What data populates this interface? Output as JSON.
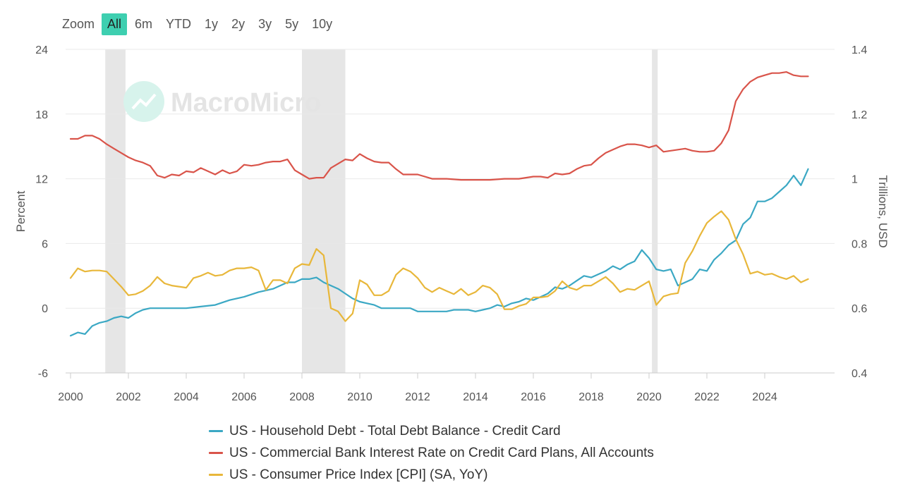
{
  "toolbar": {
    "zoom_label": "Zoom",
    "buttons": [
      "All",
      "6m",
      "YTD",
      "1y",
      "2y",
      "3y",
      "5y",
      "10y"
    ],
    "active": "All"
  },
  "watermark": "MacroMicro",
  "colors": {
    "accent": "#3ecfb0",
    "debt": "#3ba8c4",
    "rate": "#d9544a",
    "cpi": "#e8b73a",
    "recession": "#e6e6e6"
  },
  "chart_data": {
    "type": "line",
    "title": "",
    "ylabel_left": "Percent",
    "ylabel_right": "Trillions, USD",
    "ylim_left": [
      -6,
      24
    ],
    "ylim_right": [
      0.4,
      1.4
    ],
    "yticks_left": [
      "24",
      "18",
      "12",
      "6",
      "0",
      "-6"
    ],
    "yticks_right": [
      "1.4",
      "1.2",
      "1",
      "0.8",
      "0.6",
      "0.4"
    ],
    "xlim": [
      2000,
      2026.7
    ],
    "xticks": [
      "2000",
      "2002",
      "2004",
      "2006",
      "2008",
      "2010",
      "2012",
      "2014",
      "2016",
      "2018",
      "2020",
      "2022",
      "2024"
    ],
    "recessions": [
      [
        2001.2,
        2001.9
      ],
      [
        2008.0,
        2009.5
      ],
      [
        2020.1,
        2020.3
      ]
    ],
    "series": [
      {
        "name": "US - Household Debt - Total Debt Balance - Credit Card",
        "axis": "right",
        "color_key": "debt",
        "x": [
          2000.0,
          2000.25,
          2000.5,
          2000.75,
          2001.0,
          2001.25,
          2001.5,
          2001.75,
          2002.0,
          2002.25,
          2002.5,
          2002.75,
          2003.0,
          2003.5,
          2004.0,
          2004.5,
          2005.0,
          2005.5,
          2006.0,
          2006.5,
          2007.0,
          2007.25,
          2007.5,
          2007.75,
          2008.0,
          2008.25,
          2008.5,
          2008.75,
          2009.0,
          2009.25,
          2009.5,
          2009.75,
          2010.0,
          2010.25,
          2010.5,
          2010.75,
          2011.0,
          2011.25,
          2011.5,
          2011.75,
          2012.0,
          2012.25,
          2012.5,
          2012.75,
          2013.0,
          2013.25,
          2013.5,
          2013.75,
          2014.0,
          2014.25,
          2014.5,
          2014.75,
          2015.0,
          2015.25,
          2015.5,
          2015.75,
          2016.0,
          2016.25,
          2016.5,
          2016.75,
          2017.0,
          2017.25,
          2017.5,
          2017.75,
          2018.0,
          2018.25,
          2018.5,
          2018.75,
          2019.0,
          2019.25,
          2019.5,
          2019.75,
          2020.0,
          2020.25,
          2020.5,
          2020.75,
          2021.0,
          2021.25,
          2021.5,
          2021.75,
          2022.0,
          2022.25,
          2022.5,
          2022.75,
          2023.0,
          2023.25,
          2023.5,
          2023.75,
          2024.0,
          2024.25,
          2024.5,
          2024.75,
          2025.0,
          2025.25,
          2025.5
        ],
        "y": [
          0.515,
          0.525,
          0.52,
          0.545,
          0.555,
          0.56,
          0.57,
          0.575,
          0.57,
          0.585,
          0.595,
          0.6,
          0.6,
          0.6,
          0.6,
          0.605,
          0.61,
          0.625,
          0.635,
          0.65,
          0.66,
          0.67,
          0.68,
          0.68,
          0.69,
          0.69,
          0.695,
          0.68,
          0.67,
          0.66,
          0.645,
          0.63,
          0.62,
          0.615,
          0.61,
          0.6,
          0.6,
          0.6,
          0.6,
          0.6,
          0.59,
          0.59,
          0.59,
          0.59,
          0.59,
          0.595,
          0.595,
          0.595,
          0.59,
          0.595,
          0.6,
          0.61,
          0.605,
          0.615,
          0.62,
          0.63,
          0.625,
          0.635,
          0.645,
          0.665,
          0.66,
          0.67,
          0.685,
          0.7,
          0.695,
          0.705,
          0.715,
          0.73,
          0.72,
          0.735,
          0.745,
          0.78,
          0.755,
          0.72,
          0.715,
          0.72,
          0.67,
          0.68,
          0.69,
          0.72,
          0.715,
          0.75,
          0.77,
          0.795,
          0.81,
          0.86,
          0.88,
          0.93,
          0.93,
          0.94,
          0.96,
          0.98,
          1.01,
          0.98,
          1.03
        ]
      },
      {
        "name": "US - Commercial Bank Interest Rate on Credit Card Plans, All Accounts",
        "axis": "left",
        "color_key": "rate",
        "x": [
          2000.0,
          2000.25,
          2000.5,
          2000.75,
          2001.0,
          2001.25,
          2001.5,
          2001.75,
          2002.0,
          2002.25,
          2002.5,
          2002.75,
          2003.0,
          2003.25,
          2003.5,
          2003.75,
          2004.0,
          2004.25,
          2004.5,
          2004.75,
          2005.0,
          2005.25,
          2005.5,
          2005.75,
          2006.0,
          2006.25,
          2006.5,
          2006.75,
          2007.0,
          2007.25,
          2007.5,
          2007.75,
          2008.0,
          2008.25,
          2008.5,
          2008.75,
          2009.0,
          2009.25,
          2009.5,
          2009.75,
          2010.0,
          2010.25,
          2010.5,
          2010.75,
          2011.0,
          2011.25,
          2011.5,
          2011.75,
          2012.0,
          2012.5,
          2013.0,
          2013.5,
          2014.0,
          2014.5,
          2015.0,
          2015.5,
          2016.0,
          2016.25,
          2016.5,
          2016.75,
          2017.0,
          2017.25,
          2017.5,
          2017.75,
          2018.0,
          2018.25,
          2018.5,
          2018.75,
          2019.0,
          2019.25,
          2019.5,
          2019.75,
          2020.0,
          2020.25,
          2020.5,
          2020.75,
          2021.0,
          2021.25,
          2021.5,
          2021.75,
          2022.0,
          2022.25,
          2022.5,
          2022.75,
          2023.0,
          2023.25,
          2023.5,
          2023.75,
          2024.0,
          2024.25,
          2024.5,
          2024.75,
          2025.0,
          2025.25,
          2025.5
        ],
        "y": [
          15.7,
          15.7,
          16.0,
          16.0,
          15.7,
          15.2,
          14.8,
          14.4,
          14.0,
          13.7,
          13.5,
          13.2,
          12.3,
          12.1,
          12.4,
          12.3,
          12.7,
          12.6,
          13.0,
          12.7,
          12.4,
          12.8,
          12.5,
          12.7,
          13.3,
          13.2,
          13.3,
          13.5,
          13.6,
          13.6,
          13.8,
          12.8,
          12.4,
          12.0,
          12.1,
          12.1,
          13.0,
          13.4,
          13.8,
          13.7,
          14.3,
          13.9,
          13.6,
          13.5,
          13.5,
          12.9,
          12.4,
          12.4,
          12.4,
          12.0,
          12.0,
          11.9,
          11.9,
          11.9,
          12.0,
          12.0,
          12.2,
          12.2,
          12.1,
          12.5,
          12.4,
          12.5,
          12.9,
          13.2,
          13.3,
          13.9,
          14.4,
          14.7,
          15.0,
          15.2,
          15.2,
          15.1,
          14.9,
          15.1,
          14.5,
          14.6,
          14.7,
          14.8,
          14.6,
          14.5,
          14.5,
          14.6,
          15.3,
          16.5,
          19.2,
          20.3,
          21.0,
          21.4,
          21.6,
          21.8,
          21.8,
          21.9,
          21.6,
          21.5,
          21.5
        ]
      },
      {
        "name": "US - Consumer Price Index [CPI] (SA, YoY)",
        "axis": "left",
        "color_key": "cpi",
        "x": [
          2000.0,
          2000.25,
          2000.5,
          2000.75,
          2001.0,
          2001.25,
          2001.5,
          2001.75,
          2002.0,
          2002.25,
          2002.5,
          2002.75,
          2003.0,
          2003.25,
          2003.5,
          2003.75,
          2004.0,
          2004.25,
          2004.5,
          2004.75,
          2005.0,
          2005.25,
          2005.5,
          2005.75,
          2006.0,
          2006.25,
          2006.5,
          2006.75,
          2007.0,
          2007.25,
          2007.5,
          2007.75,
          2008.0,
          2008.25,
          2008.5,
          2008.75,
          2009.0,
          2009.25,
          2009.5,
          2009.75,
          2010.0,
          2010.25,
          2010.5,
          2010.75,
          2011.0,
          2011.25,
          2011.5,
          2011.75,
          2012.0,
          2012.25,
          2012.5,
          2012.75,
          2013.0,
          2013.25,
          2013.5,
          2013.75,
          2014.0,
          2014.25,
          2014.5,
          2014.75,
          2015.0,
          2015.25,
          2015.5,
          2015.75,
          2016.0,
          2016.25,
          2016.5,
          2016.75,
          2017.0,
          2017.25,
          2017.5,
          2017.75,
          2018.0,
          2018.25,
          2018.5,
          2018.75,
          2019.0,
          2019.25,
          2019.5,
          2019.75,
          2020.0,
          2020.25,
          2020.5,
          2020.75,
          2021.0,
          2021.25,
          2021.5,
          2021.75,
          2022.0,
          2022.25,
          2022.5,
          2022.75,
          2023.0,
          2023.25,
          2023.5,
          2023.75,
          2024.0,
          2024.25,
          2024.5,
          2024.75,
          2025.0,
          2025.25,
          2025.5
        ],
        "y": [
          2.8,
          3.7,
          3.4,
          3.5,
          3.5,
          3.4,
          2.7,
          2.0,
          1.2,
          1.3,
          1.6,
          2.1,
          2.9,
          2.3,
          2.1,
          2.0,
          1.9,
          2.8,
          3.0,
          3.3,
          3.0,
          3.1,
          3.5,
          3.7,
          3.7,
          3.8,
          3.5,
          1.7,
          2.6,
          2.6,
          2.3,
          3.7,
          4.1,
          4.0,
          5.5,
          4.9,
          0.0,
          -0.3,
          -1.2,
          -0.5,
          2.6,
          2.2,
          1.2,
          1.2,
          1.6,
          3.1,
          3.7,
          3.4,
          2.8,
          1.9,
          1.5,
          1.9,
          1.6,
          1.3,
          1.8,
          1.2,
          1.5,
          2.1,
          1.9,
          1.3,
          -0.1,
          -0.1,
          0.2,
          0.4,
          1.0,
          1.0,
          1.1,
          1.6,
          2.5,
          1.9,
          1.7,
          2.1,
          2.1,
          2.5,
          2.9,
          2.3,
          1.5,
          1.8,
          1.7,
          2.1,
          2.5,
          0.3,
          1.1,
          1.3,
          1.4,
          4.2,
          5.3,
          6.7,
          7.9,
          8.5,
          9.0,
          8.2,
          6.4,
          5.0,
          3.2,
          3.4,
          3.1,
          3.2,
          2.9,
          2.7,
          3.0,
          2.4,
          2.7
        ]
      }
    ]
  },
  "legend": {
    "debt": "US - Household Debt - Total Debt Balance - Credit Card",
    "rate": "US - Commercial Bank Interest Rate on Credit Card Plans, All Accounts",
    "cpi": "US - Consumer Price Index [CPI] (SA, YoY)"
  }
}
